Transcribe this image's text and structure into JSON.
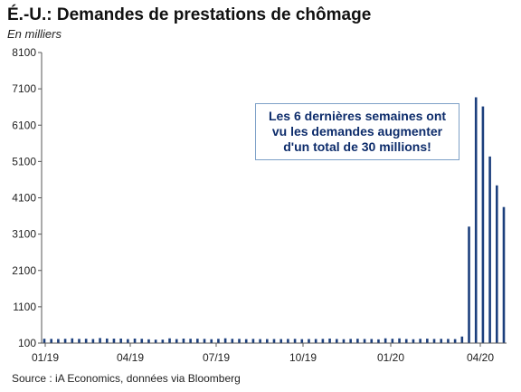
{
  "title": "É.-U.: Demandes de prestations de chômage",
  "subtitle": "En milliers",
  "source": "Source : iA Economics, données via Bloomberg",
  "annotation": "Les 6 dernières semaines ont vu les demandes augmenter d'un total de 30 millions!",
  "colors": {
    "bar": "#1c3f7d",
    "axis": "#555555",
    "annotation_text": "#0d2c6b",
    "annotation_border": "#7da0c7"
  },
  "chart_data": {
    "type": "bar",
    "ylim": [
      100,
      8100
    ],
    "yticks": [
      100,
      1100,
      2100,
      3100,
      4100,
      5100,
      6100,
      7100,
      8100
    ],
    "xtick_labels": [
      "01/19",
      "04/19",
      "07/19",
      "10/19",
      "01/20",
      "04/20"
    ],
    "grid": false,
    "values": [
      220,
      216,
      213,
      218,
      231,
      216,
      220,
      212,
      239,
      226,
      223,
      225,
      210,
      225,
      219,
      204,
      195,
      196,
      231,
      211,
      224,
      219,
      221,
      216,
      207,
      218,
      232,
      218,
      217,
      209,
      216,
      210,
      211,
      212,
      211,
      215,
      217,
      209,
      212,
      213,
      216,
      225,
      213,
      207,
      215,
      220,
      213,
      213,
      203,
      231,
      220,
      230,
      212,
      206,
      218,
      222,
      214,
      217,
      215,
      211,
      281,
      3307,
      6867,
      6615,
      5237,
      4442,
      3846
    ]
  }
}
